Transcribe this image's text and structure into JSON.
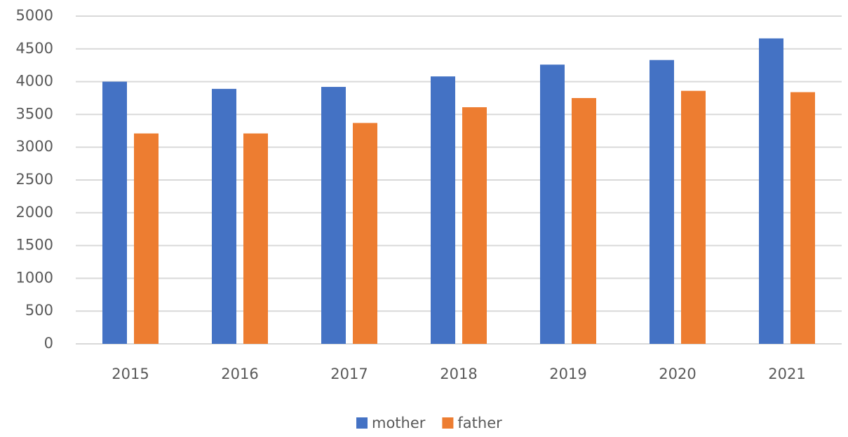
{
  "chart_data": {
    "type": "bar",
    "categories": [
      "2015",
      "2016",
      "2017",
      "2018",
      "2019",
      "2020",
      "2021"
    ],
    "series": [
      {
        "name": "mother",
        "color": "#4472c4",
        "values": [
          4000,
          3890,
          3920,
          4080,
          4260,
          4330,
          4660
        ]
      },
      {
        "name": "father",
        "color": "#ed7d31",
        "values": [
          3210,
          3210,
          3370,
          3610,
          3750,
          3860,
          3840
        ]
      }
    ],
    "ylim": [
      0,
      5000
    ],
    "yticks": [
      0,
      500,
      1000,
      1500,
      2000,
      2500,
      3000,
      3500,
      4000,
      4500,
      5000
    ],
    "grid": true,
    "legend": "bottom"
  }
}
